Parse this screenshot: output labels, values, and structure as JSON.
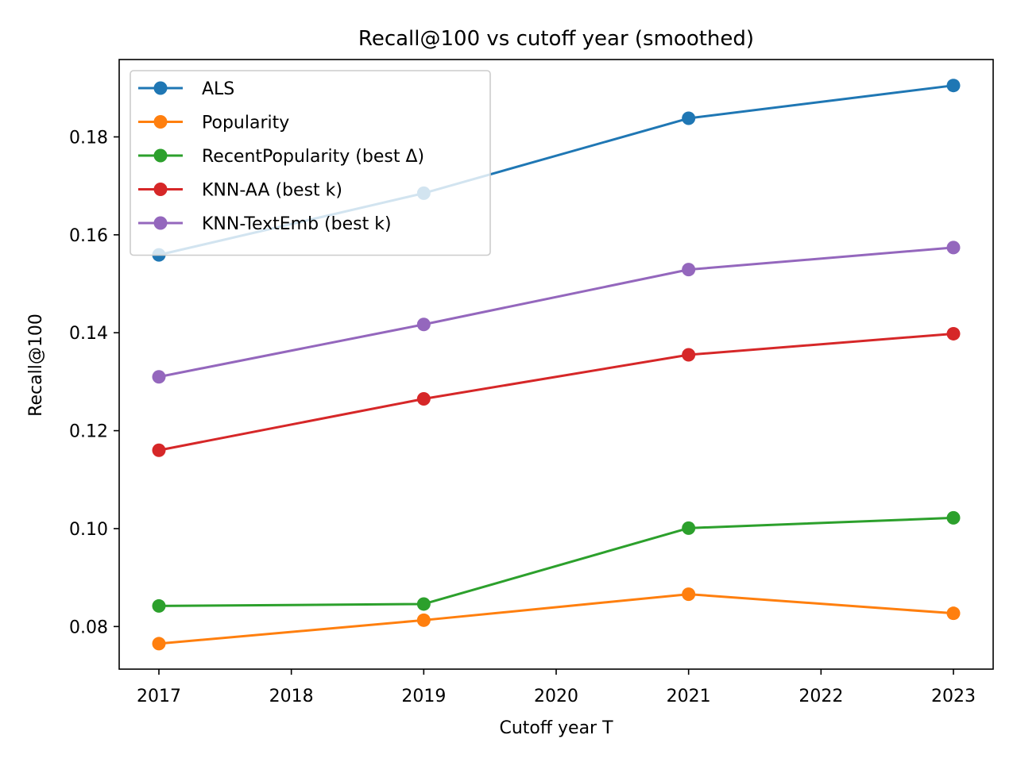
{
  "chart_data": {
    "type": "line",
    "title": "Recall@100 vs cutoff year (smoothed)",
    "xlabel": "Cutoff year T",
    "ylabel": "Recall@100",
    "xlim": [
      2016.7,
      2023.3
    ],
    "ylim": [
      0.0713,
      0.1958
    ],
    "xticks": [
      2017,
      2018,
      2019,
      2020,
      2021,
      2022,
      2023
    ],
    "yticks": [
      0.08,
      0.1,
      0.12,
      0.14,
      0.16,
      0.18
    ],
    "ytick_labels": [
      "0.08",
      "0.10",
      "0.12",
      "0.14",
      "0.16",
      "0.18"
    ],
    "x": [
      2017,
      2019,
      2021,
      2023
    ],
    "legend_position": "upper-left",
    "grid": false,
    "series": [
      {
        "name": "ALS",
        "color": "#1f77b4",
        "values": [
          0.1559,
          0.1685,
          0.1838,
          0.1905
        ]
      },
      {
        "name": "Popularity",
        "color": "#ff7f0e",
        "values": [
          0.0765,
          0.0813,
          0.0866,
          0.0827
        ]
      },
      {
        "name": "RecentPopularity (best Δ)",
        "color": "#2ca02c",
        "values": [
          0.0842,
          0.0846,
          0.1001,
          0.1022
        ]
      },
      {
        "name": "KNN-AA (best k)",
        "color": "#d62728",
        "values": [
          0.116,
          0.1265,
          0.1355,
          0.1398
        ]
      },
      {
        "name": "KNN-TextEmb (best k)",
        "color": "#9467bd",
        "values": [
          0.131,
          0.1417,
          0.1529,
          0.1574
        ]
      }
    ]
  }
}
